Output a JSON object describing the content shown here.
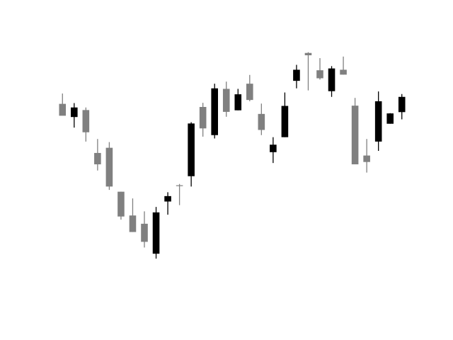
{
  "chart_data": {
    "type": "candlestick",
    "title": "",
    "xlabel": "",
    "ylabel": "",
    "axes_visible": false,
    "grid": false,
    "legend": "none",
    "ylim": [
      0,
      100
    ],
    "colors": {
      "up": "#000000",
      "down": "#808080"
    },
    "candles": [
      {
        "open": 75.6,
        "high": 79.6,
        "low": 71.2,
        "close": 71.0
      },
      {
        "open": 70.5,
        "high": 75.9,
        "low": 66.4,
        "close": 74.2
      },
      {
        "open": 73.2,
        "high": 74.2,
        "low": 61.0,
        "close": 64.6
      },
      {
        "open": 56.6,
        "high": 62.0,
        "low": 49.8,
        "close": 52.2
      },
      {
        "open": 58.6,
        "high": 60.8,
        "low": 42.3,
        "close": 43.6
      },
      {
        "open": 41.6,
        "high": 41.6,
        "low": 30.8,
        "close": 32.0
      },
      {
        "open": 32.4,
        "high": 39.0,
        "low": 26.0,
        "close": 26.0
      },
      {
        "open": 29.2,
        "high": 34.0,
        "low": 20.0,
        "close": 22.2
      },
      {
        "open": 17.6,
        "high": 35.7,
        "low": 15.7,
        "close": 33.6
      },
      {
        "open": 37.8,
        "high": 41.4,
        "low": 32.7,
        "close": 39.9
      },
      {
        "open": 44.1,
        "high": 44.6,
        "low": 36.4,
        "close": 43.8
      },
      {
        "open": 47.6,
        "high": 68.5,
        "low": 43.6,
        "close": 68.0
      },
      {
        "open": 74.4,
        "high": 76.0,
        "low": 62.9,
        "close": 66.1
      },
      {
        "open": 63.5,
        "high": 83.4,
        "low": 62.2,
        "close": 81.6
      },
      {
        "open": 81.4,
        "high": 84.2,
        "low": 70.6,
        "close": 72.5
      },
      {
        "open": 73.1,
        "high": 81.4,
        "low": 73.1,
        "close": 79.3
      },
      {
        "open": 83.4,
        "high": 86.8,
        "low": 76.6,
        "close": 77.1
      },
      {
        "open": 71.7,
        "high": 75.7,
        "low": 63.5,
        "close": 65.5
      },
      {
        "open": 56.9,
        "high": 62.7,
        "low": 52.7,
        "close": 59.8
      },
      {
        "open": 62.7,
        "high": 80.0,
        "low": 62.7,
        "close": 74.8
      },
      {
        "open": 84.5,
        "high": 90.7,
        "low": 81.6,
        "close": 88.8
      },
      {
        "open": 95.3,
        "high": 95.6,
        "low": 80.8,
        "close": 94.4
      },
      {
        "open": 88.6,
        "high": 93.3,
        "low": 85.0,
        "close": 85.5
      },
      {
        "open": 80.5,
        "high": 90.2,
        "low": 78.3,
        "close": 89.3
      },
      {
        "open": 88.8,
        "high": 93.9,
        "low": 86.9,
        "close": 86.9
      },
      {
        "open": 74.9,
        "high": 77.9,
        "low": 52.2,
        "close": 52.2
      },
      {
        "open": 55.6,
        "high": 62.0,
        "low": 49.0,
        "close": 53.1
      },
      {
        "open": 61.0,
        "high": 80.4,
        "low": 57.4,
        "close": 76.6
      },
      {
        "open": 67.9,
        "high": 72.0,
        "low": 67.9,
        "close": 71.9
      },
      {
        "open": 72.4,
        "high": 79.4,
        "low": 69.6,
        "close": 78.3
      }
    ]
  }
}
